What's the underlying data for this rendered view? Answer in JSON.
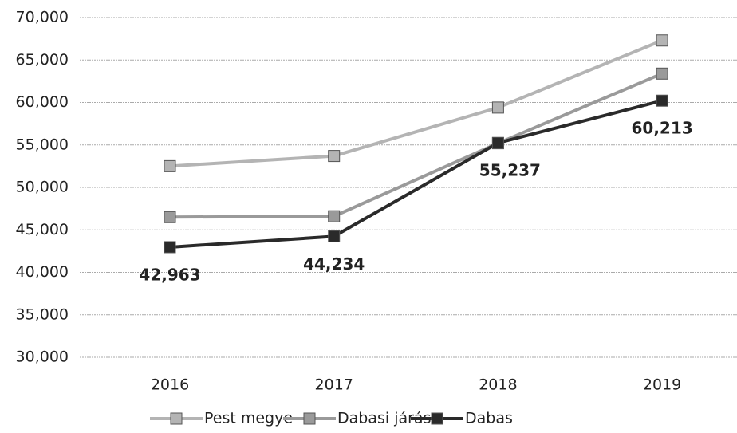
{
  "chart_data": {
    "type": "line",
    "categories": [
      "2016",
      "2017",
      "2018",
      "2019"
    ],
    "series": [
      {
        "name": "Pest megye",
        "color": "#b4b4b4",
        "values": [
          52500,
          53700,
          59400,
          67300
        ]
      },
      {
        "name": "Dabasi járás",
        "color": "#9a9a9a",
        "values": [
          46500,
          46600,
          55200,
          63400
        ]
      },
      {
        "name": "Dabas",
        "color": "#2a2a2a",
        "values": [
          42963,
          44234,
          55237,
          60213
        ],
        "value_labels": [
          "42,963",
          "44,234",
          "55,237",
          "60,213"
        ]
      }
    ],
    "ylim": [
      30000,
      70000
    ],
    "yticks": [
      {
        "value": 30000,
        "label": "30,000"
      },
      {
        "value": 35000,
        "label": "35,000"
      },
      {
        "value": 40000,
        "label": "40,000"
      },
      {
        "value": 45000,
        "label": "45,000"
      },
      {
        "value": 50000,
        "label": "50,000"
      },
      {
        "value": 55000,
        "label": "55,000"
      },
      {
        "value": 60000,
        "label": "60,000"
      },
      {
        "value": 65000,
        "label": "65,000"
      },
      {
        "value": 70000,
        "label": "70,000"
      }
    ],
    "grid": true,
    "legend": "bottom"
  }
}
